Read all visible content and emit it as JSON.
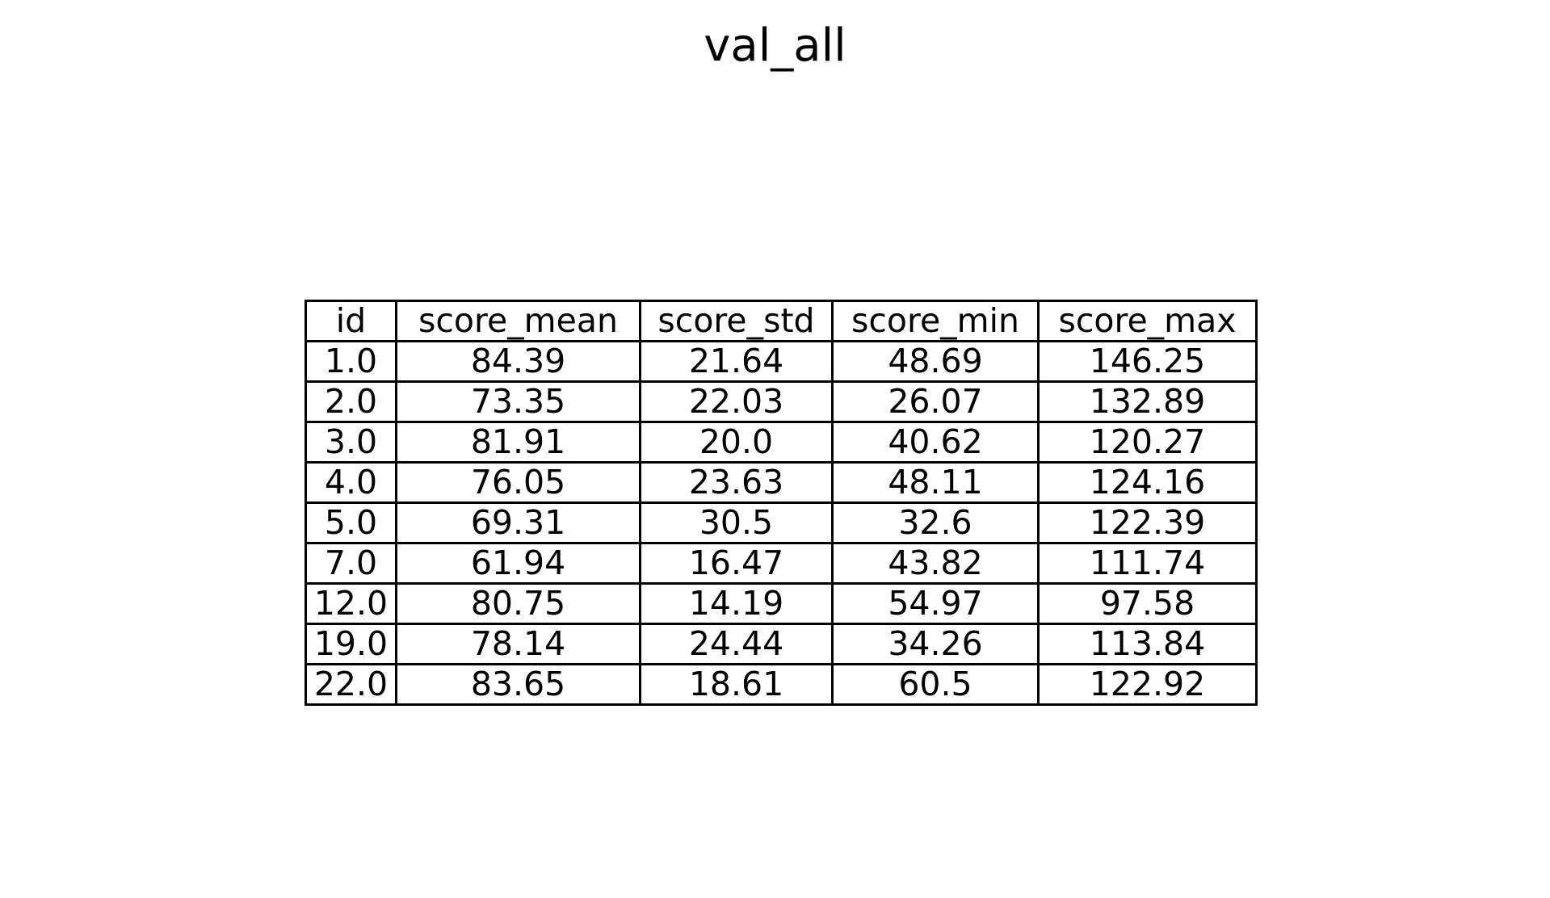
{
  "chart_data": {
    "type": "table",
    "title": "val_all",
    "columns": [
      "id",
      "score_mean",
      "score_std",
      "score_min",
      "score_max"
    ],
    "rows": [
      [
        "1.0",
        "84.39",
        "21.64",
        "48.69",
        "146.25"
      ],
      [
        "2.0",
        "73.35",
        "22.03",
        "26.07",
        "132.89"
      ],
      [
        "3.0",
        "81.91",
        "20.0",
        "40.62",
        "120.27"
      ],
      [
        "4.0",
        "76.05",
        "23.63",
        "48.11",
        "124.16"
      ],
      [
        "5.0",
        "69.31",
        "30.5",
        "32.6",
        "122.39"
      ],
      [
        "7.0",
        "61.94",
        "16.47",
        "43.82",
        "111.74"
      ],
      [
        "12.0",
        "80.75",
        "14.19",
        "54.97",
        "97.58"
      ],
      [
        "19.0",
        "78.14",
        "24.44",
        "34.26",
        "113.84"
      ],
      [
        "22.0",
        "83.65",
        "18.61",
        "60.5",
        "122.92"
      ]
    ]
  }
}
